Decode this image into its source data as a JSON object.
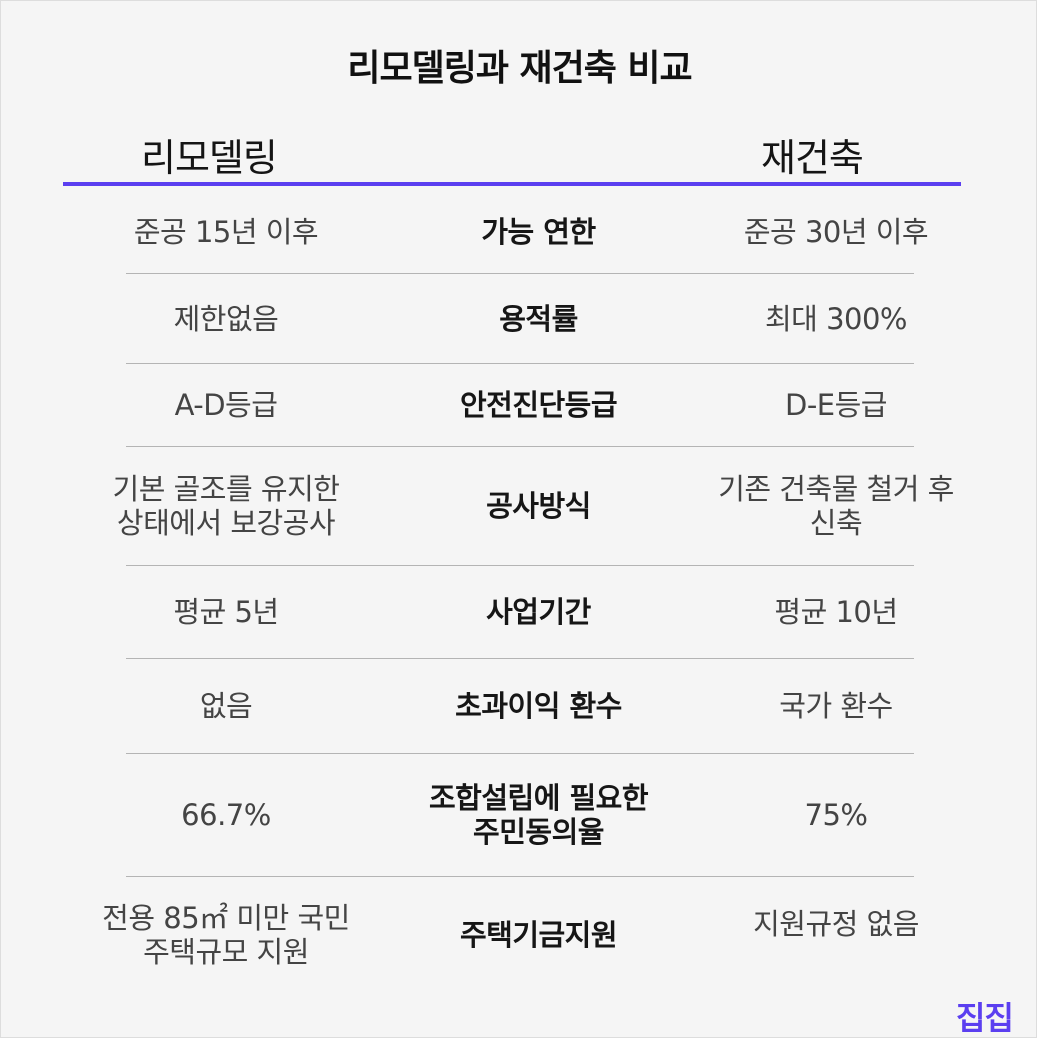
{
  "title": "리모델링과 재건축 비교",
  "headers": {
    "left": "리모델링",
    "right": "재건축"
  },
  "colors": {
    "accent": "#5b3ff0",
    "divider": "#b4b4b4",
    "background": "#f5f5f5"
  },
  "rows": [
    {
      "label": "가능 연한",
      "remodel": "준공 15년 이후",
      "rebuild": "준공 30년 이후"
    },
    {
      "label": "용적률",
      "remodel": "제한없음",
      "rebuild": "최대 300%"
    },
    {
      "label": "안전진단등급",
      "remodel": "A-D등급",
      "rebuild": "D-E등급"
    },
    {
      "label": "공사방식",
      "remodel": "기본 골조를 유지한\n상태에서 보강공사",
      "rebuild": "기존 건축물 철거 후\n신축"
    },
    {
      "label": "사업기간",
      "remodel": "평균 5년",
      "rebuild": "평균 10년"
    },
    {
      "label": "초과이익 환수",
      "remodel": "없음",
      "rebuild": "국가 환수"
    },
    {
      "label": "조합설립에 필요한\n주민동의율",
      "remodel": "66.7%",
      "rebuild": "75%"
    },
    {
      "label": "주택기금지원",
      "remodel": "전용 85㎡ 미만 국민\n주택규모 지원",
      "rebuild": "지원규정 없음"
    }
  ],
  "logo": "집집"
}
